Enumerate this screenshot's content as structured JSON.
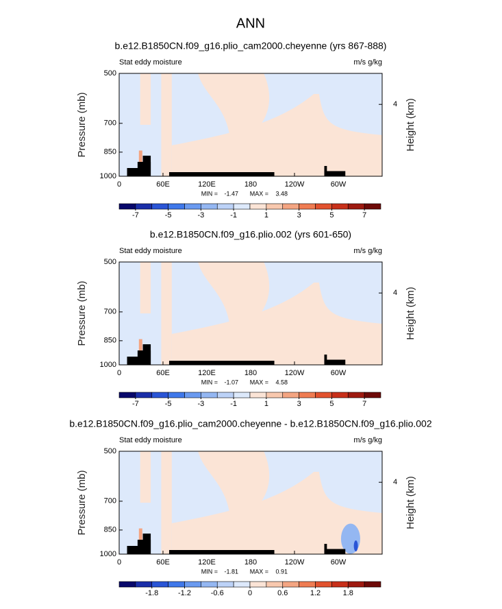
{
  "title": "ANN",
  "chart_data": [
    {
      "type": "contour",
      "title": "b.e12.B1850CN.f09_g16.plio_cam2000.cheyenne (yrs 867-888)",
      "left_label": "Stat eddy moisture",
      "right_label": "m/s g/kg",
      "ylabel": "Pressure (mb)",
      "y2label": "Height (km)",
      "ylim": [
        1000,
        500
      ],
      "log_y": true,
      "yticks": [
        500,
        700,
        850,
        1000
      ],
      "y2ticks": [
        4
      ],
      "xlim": [
        0,
        360
      ],
      "xticks": [
        0,
        {
          "value": 60,
          "label": "60E"
        },
        {
          "value": 120,
          "label": "120E"
        },
        180,
        {
          "value": 240,
          "label": "120W"
        },
        {
          "value": 300,
          "label": "60W"
        }
      ],
      "min_label": "MIN =",
      "min": -1.47,
      "max_label": "MAX =",
      "max": 3.48,
      "levels": [
        -7,
        -6,
        -5,
        -4,
        -3,
        -2,
        -1,
        0,
        1,
        2,
        3,
        4,
        5,
        6,
        7
      ],
      "colorbar_ticks": [
        -7,
        -5,
        -3,
        -1,
        1,
        3,
        5,
        7
      ],
      "colors": [
        "#08086b",
        "#1a2ea8",
        "#2a55d6",
        "#3f78ea",
        "#6a9af0",
        "#94b7f2",
        "#bcd2f7",
        "#dde9fb",
        "#fbe4d6",
        "#f8c8ae",
        "#f4a582",
        "#ef7c52",
        "#e2522e",
        "#c8301a",
        "#9e1a10",
        "#6e0a08"
      ]
    },
    {
      "type": "contour",
      "title": "b.e12.B1850CN.f09_g16.plio.002 (yrs 601-650)",
      "left_label": "Stat eddy moisture",
      "right_label": "m/s g/kg",
      "ylabel": "Pressure (mb)",
      "y2label": "Height (km)",
      "ylim": [
        1000,
        500
      ],
      "log_y": true,
      "yticks": [
        500,
        700,
        850,
        1000
      ],
      "y2ticks": [
        4
      ],
      "xlim": [
        0,
        360
      ],
      "xticks": [
        0,
        {
          "value": 60,
          "label": "60E"
        },
        {
          "value": 120,
          "label": "120E"
        },
        180,
        {
          "value": 240,
          "label": "120W"
        },
        {
          "value": 300,
          "label": "60W"
        }
      ],
      "min_label": "MIN =",
      "min": -1.07,
      "max_label": "MAX =",
      "max": 4.58,
      "levels": [
        -7,
        -6,
        -5,
        -4,
        -3,
        -2,
        -1,
        0,
        1,
        2,
        3,
        4,
        5,
        6,
        7
      ],
      "colorbar_ticks": [
        -7,
        -5,
        -3,
        -1,
        1,
        3,
        5,
        7
      ],
      "colors": [
        "#08086b",
        "#1a2ea8",
        "#2a55d6",
        "#3f78ea",
        "#6a9af0",
        "#94b7f2",
        "#bcd2f7",
        "#dde9fb",
        "#fbe4d6",
        "#f8c8ae",
        "#f4a582",
        "#ef7c52",
        "#e2522e",
        "#c8301a",
        "#9e1a10",
        "#6e0a08"
      ]
    },
    {
      "type": "contour",
      "title": "b.e12.B1850CN.f09_g16.plio_cam2000.cheyenne - b.e12.B1850CN.f09_g16.plio.002",
      "left_label": "Stat eddy moisture",
      "right_label": "m/s g/kg",
      "ylabel": "Pressure (mb)",
      "y2label": "Height (km)",
      "ylim": [
        1000,
        500
      ],
      "log_y": true,
      "yticks": [
        500,
        700,
        850,
        1000
      ],
      "y2ticks": [
        4
      ],
      "xlim": [
        0,
        360
      ],
      "xticks": [
        0,
        {
          "value": 60,
          "label": "60E"
        },
        {
          "value": 120,
          "label": "120E"
        },
        180,
        {
          "value": 240,
          "label": "120W"
        },
        {
          "value": 300,
          "label": "60W"
        }
      ],
      "min_label": "MIN =",
      "min": -1.81,
      "max_label": "MAX =",
      "max": 0.91,
      "levels": [
        -2.1,
        -1.8,
        -1.5,
        -1.2,
        -0.9,
        -0.6,
        -0.3,
        0,
        0.3,
        0.6,
        0.9,
        1.2,
        1.5,
        1.8,
        2.1
      ],
      "colorbar_ticks": [
        -1.8,
        -1.2,
        -0.6,
        0,
        0.6,
        1.2,
        1.8
      ],
      "colors": [
        "#08086b",
        "#1a2ea8",
        "#2a55d6",
        "#3f78ea",
        "#6a9af0",
        "#94b7f2",
        "#bcd2f7",
        "#dde9fb",
        "#fbe4d6",
        "#f8c8ae",
        "#f4a582",
        "#ef7c52",
        "#e2522e",
        "#c8301a",
        "#9e1a10",
        "#6e0a08"
      ]
    }
  ]
}
